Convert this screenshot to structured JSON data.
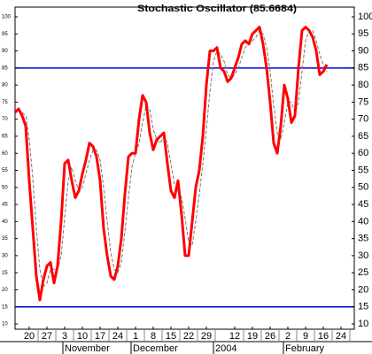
{
  "chart_data": {
    "type": "line",
    "title": "Stochastic Oscillator (85.6684)",
    "x": [
      -4,
      -3,
      -2,
      -1,
      0,
      1,
      2,
      3,
      4,
      5,
      6,
      7,
      8,
      9,
      10,
      11,
      12,
      13,
      14,
      15,
      16,
      17,
      18,
      19,
      20,
      21,
      22,
      23,
      24,
      25,
      26,
      27,
      28,
      29,
      30,
      31,
      32,
      33,
      34,
      35,
      36,
      37,
      38,
      39,
      40,
      41,
      42,
      43,
      44,
      45,
      46,
      47,
      48,
      49,
      50,
      51,
      52,
      53,
      54,
      55,
      56,
      57,
      58,
      59,
      60,
      61,
      62,
      63,
      64,
      65,
      66,
      67,
      68,
      69,
      70,
      71,
      72,
      73,
      74,
      75,
      76,
      77,
      78,
      79,
      80,
      81,
      82,
      83,
      84
    ],
    "series": [
      {
        "color": "#ff0000",
        "width": 3,
        "dashed": false,
        "values": [
          72,
          73,
          71,
          68,
          52,
          38,
          24,
          17,
          23,
          27,
          28,
          22,
          27,
          40,
          57,
          58,
          52,
          47,
          49,
          54,
          58,
          63,
          62,
          59,
          52,
          38,
          30,
          24,
          23,
          27,
          35,
          48,
          59,
          60,
          60,
          70,
          77,
          75,
          66,
          61,
          64,
          65,
          66,
          57,
          49,
          47,
          52,
          42,
          30,
          30,
          40,
          50,
          55,
          65,
          80,
          90,
          90,
          91,
          85,
          84,
          81,
          82,
          85,
          88,
          92,
          93,
          92,
          95,
          96,
          97,
          92,
          85,
          75,
          63,
          60,
          68,
          80,
          76,
          69,
          71,
          85,
          96,
          97,
          96,
          94,
          90,
          83,
          84,
          86
        ]
      },
      {
        "color": "#777777",
        "width": 1,
        "dashed": true,
        "values": [
          null,
          null,
          72,
          71,
          64,
          53,
          38,
          26,
          21,
          22,
          26,
          26,
          26,
          30,
          41,
          52,
          56,
          52,
          49,
          50,
          54,
          58,
          61,
          61,
          58,
          50,
          40,
          31,
          26,
          25,
          28,
          37,
          47,
          56,
          60,
          63,
          69,
          74,
          73,
          67,
          64,
          63,
          65,
          63,
          57,
          51,
          49,
          47,
          41,
          34,
          33,
          40,
          48,
          57,
          67,
          78,
          87,
          90,
          89,
          87,
          83,
          82,
          83,
          85,
          88,
          91,
          92,
          93,
          94,
          96,
          95,
          91,
          84,
          74,
          66,
          64,
          69,
          75,
          75,
          72,
          75,
          84,
          93,
          96,
          96,
          93,
          89,
          86,
          84
        ]
      }
    ],
    "hlines": [
      85,
      15
    ],
    "hline_color": "#0000cc",
    "xlim": [
      -4,
      91.75
    ],
    "ylim": [
      8.45,
      102.85
    ],
    "yticks": [
      10,
      15,
      20,
      25,
      30,
      35,
      40,
      45,
      50,
      55,
      60,
      65,
      70,
      75,
      80,
      85,
      90,
      95,
      100
    ],
    "xticks": [
      {
        "value": 0,
        "label": "20"
      },
      {
        "value": 5,
        "label": "27"
      },
      {
        "value": 10,
        "label": "3"
      },
      {
        "value": 15,
        "label": "10"
      },
      {
        "value": 20,
        "label": "17"
      },
      {
        "value": 25,
        "label": "24"
      },
      {
        "value": 30,
        "label": "1"
      },
      {
        "value": 35,
        "label": "8"
      },
      {
        "value": 40,
        "label": "15"
      },
      {
        "value": 45,
        "label": "22"
      },
      {
        "value": 50,
        "label": "29"
      },
      {
        "value": 58,
        "label": "12"
      },
      {
        "value": 63,
        "label": "19"
      },
      {
        "value": 68,
        "label": "26"
      },
      {
        "value": 73,
        "label": "2"
      },
      {
        "value": 78,
        "label": "9"
      },
      {
        "value": 83,
        "label": "16"
      },
      {
        "value": 88,
        "label": "24"
      }
    ],
    "month_ticks": [
      {
        "value": 9.5,
        "label": "November"
      },
      {
        "value": 28.75,
        "label": "December"
      },
      {
        "value": 52,
        "label": "2004"
      },
      {
        "value": 71.75,
        "label": "February"
      }
    ]
  }
}
